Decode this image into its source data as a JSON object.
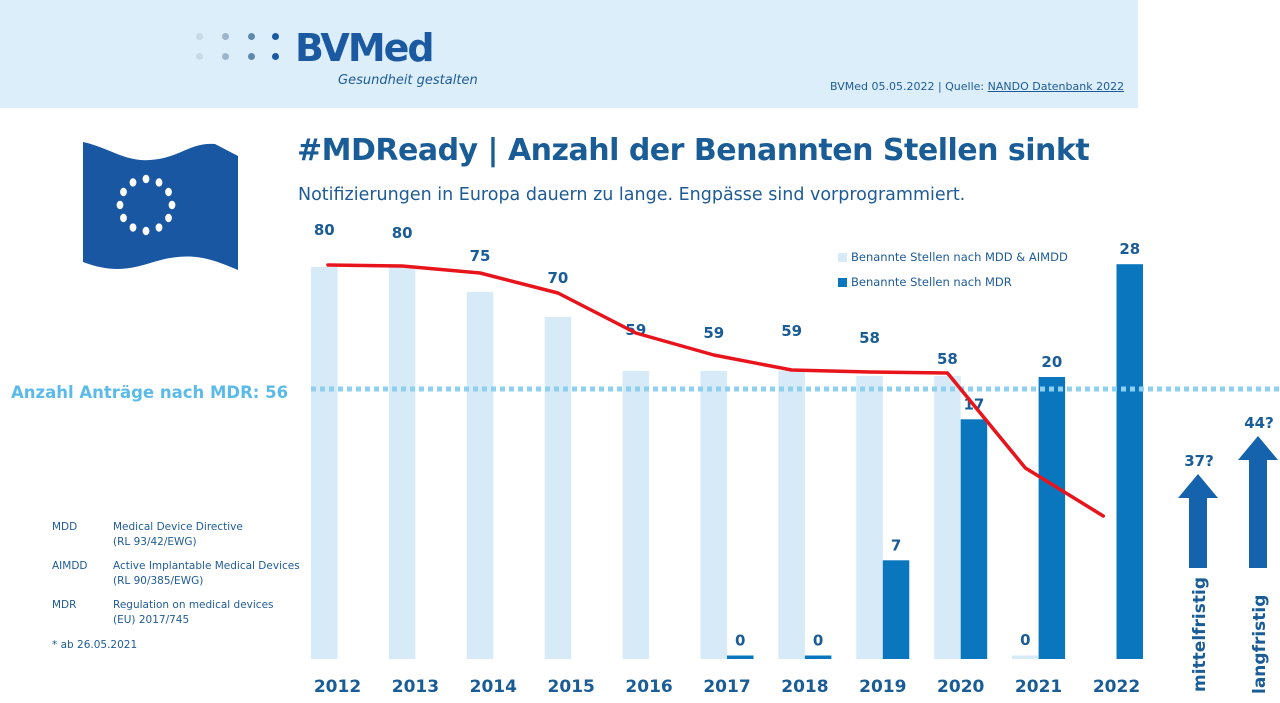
{
  "header": {
    "logo_main": "BVMed",
    "logo_tagline": "Gesundheit gestalten",
    "source_prefix": "BVMed 05.05.2022 | Quelle: ",
    "source_link": "NANDO Datenbank 2022"
  },
  "title": "#MDReady | Anzahl der Benannten Stellen sinkt",
  "subtitle": "Notifizierungen in Europa dauern zu lange. Engpässe sind vorprogrammiert.",
  "icons": {
    "flag": "eu-flag-icon"
  },
  "reference_line": {
    "label": "Anzahl Anträge nach MDR: 56",
    "value": 56
  },
  "abbreviations": [
    {
      "key": "MDD",
      "line1": "Medical Device Directive",
      "line2": "(RL 93/42/EWG)"
    },
    {
      "key": "AIMDD",
      "line1": "Active Implantable Medical Devices",
      "line2": "(RL 90/385/EWG)"
    },
    {
      "key": "MDR",
      "line1": "Regulation on medical devices",
      "line2": "(EU) 2017/745"
    }
  ],
  "footnote": "* ab 26.05.2021",
  "colors": {
    "light_bar": "#d6eaf8",
    "dark_bar": "#0a76be",
    "trend_line": "#e8141b",
    "ref_line": "#8fd0ee",
    "text": "#1a5c96"
  },
  "chart_data": {
    "type": "bar",
    "title": "#MDReady | Anzahl der Benannten Stellen sinkt",
    "xlabel": "",
    "ylabel": "",
    "categories": [
      "2012",
      "2013",
      "2014",
      "2015",
      "2016",
      "2017",
      "2018",
      "2019",
      "2020",
      "2021",
      "2022"
    ],
    "series": [
      {
        "name": "Benannte Stellen nach MDD & AIMDD",
        "values": [
          80,
          80,
          75,
          70,
          59,
          59,
          59,
          58,
          58,
          null,
          null
        ]
      },
      {
        "name": "Benannte Stellen nach MDR",
        "values": [
          null,
          null,
          null,
          null,
          null,
          0,
          0,
          7,
          17,
          20,
          28
        ]
      },
      {
        "name": "Trend",
        "kind": "line",
        "values": [
          80,
          80,
          78,
          75,
          64,
          59,
          58,
          58,
          58,
          39,
          29
        ]
      }
    ],
    "extra_labels": [
      {
        "category": "2021",
        "series": "Benannte Stellen nach MDD & AIMDD",
        "label": "0"
      }
    ],
    "reference_line": {
      "label": "Anzahl Anträge nach MDR: 56",
      "value": 56
    },
    "projections": [
      {
        "label": "mittelfristig",
        "value": "37?"
      },
      {
        "label": "langfristig",
        "value": "44?"
      }
    ],
    "legend_position": "top-right",
    "grid": false,
    "ylim": [
      0,
      80
    ]
  }
}
